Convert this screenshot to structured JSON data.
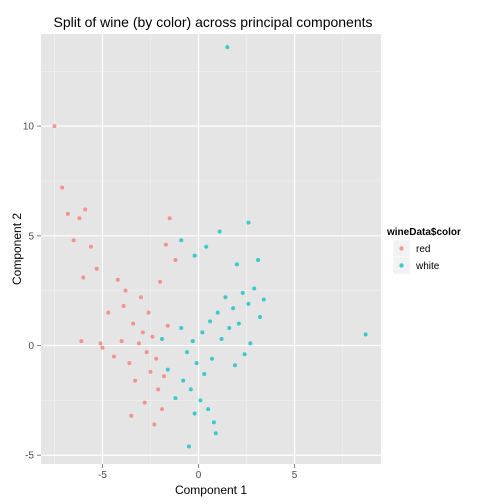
{
  "chart_data": {
    "type": "scatter",
    "title": "Split of wine (by color) across principal components",
    "xlabel": "Component 1",
    "ylabel": "Component 2",
    "xlim": [
      -8.2,
      9.5
    ],
    "ylim": [
      -5.4,
      14.2
    ],
    "x_ticks": [
      -5,
      0,
      5
    ],
    "y_ticks": [
      -5,
      0,
      5,
      10
    ],
    "grid": true,
    "legend": {
      "title": "wineData$color",
      "position": "right",
      "entries": [
        "red",
        "white"
      ]
    },
    "series": [
      {
        "name": "red",
        "color": "#F8766D",
        "points": [
          [
            -7.5,
            10.0
          ],
          [
            -7.1,
            7.2
          ],
          [
            -6.8,
            6.0
          ],
          [
            -6.2,
            5.8
          ],
          [
            -5.9,
            6.2
          ],
          [
            -6.5,
            4.8
          ],
          [
            -5.6,
            4.5
          ],
          [
            -6.0,
            3.1
          ],
          [
            -5.3,
            3.5
          ],
          [
            -6.1,
            0.2
          ],
          [
            -5.1,
            0.1
          ],
          [
            -4.7,
            1.5
          ],
          [
            -5.0,
            -0.1
          ],
          [
            -1.5,
            5.8
          ],
          [
            -1.7,
            4.6
          ],
          [
            -1.2,
            3.9
          ],
          [
            -2.0,
            2.9
          ],
          [
            -4.2,
            3.0
          ],
          [
            -3.8,
            2.5
          ],
          [
            -3.0,
            2.2
          ],
          [
            -2.6,
            1.5
          ],
          [
            -3.4,
            1.0
          ],
          [
            -2.9,
            0.6
          ],
          [
            -2.4,
            0.4
          ],
          [
            -3.1,
            0.1
          ],
          [
            -2.7,
            -0.3
          ],
          [
            -2.2,
            -0.6
          ],
          [
            -3.6,
            -0.8
          ],
          [
            -2.5,
            -1.2
          ],
          [
            -3.3,
            -1.6
          ],
          [
            -2.1,
            -2.0
          ],
          [
            -2.8,
            -2.6
          ],
          [
            -3.5,
            -3.2
          ],
          [
            -1.9,
            -2.9
          ],
          [
            -2.3,
            -3.6
          ],
          [
            -1.8,
            -1.4
          ],
          [
            -1.6,
            0.9
          ],
          [
            -4.0,
            0.2
          ],
          [
            -4.4,
            -0.5
          ],
          [
            -3.9,
            1.8
          ]
        ]
      },
      {
        "name": "white",
        "color": "#00BFC4",
        "points": [
          [
            1.5,
            13.6
          ],
          [
            2.6,
            5.6
          ],
          [
            8.7,
            0.5
          ],
          [
            1.1,
            5.2
          ],
          [
            0.4,
            4.5
          ],
          [
            -0.9,
            4.8
          ],
          [
            -0.2,
            4.1
          ],
          [
            2.0,
            3.7
          ],
          [
            3.1,
            3.9
          ],
          [
            2.9,
            2.6
          ],
          [
            2.6,
            1.9
          ],
          [
            2.3,
            2.4
          ],
          [
            1.8,
            1.7
          ],
          [
            1.4,
            2.2
          ],
          [
            1.0,
            1.5
          ],
          [
            0.6,
            1.1
          ],
          [
            0.2,
            0.6
          ],
          [
            -0.3,
            0.2
          ],
          [
            -0.6,
            -0.3
          ],
          [
            -0.1,
            -0.8
          ],
          [
            0.3,
            -1.3
          ],
          [
            0.7,
            -0.6
          ],
          [
            1.2,
            0.3
          ],
          [
            1.6,
            0.8
          ],
          [
            2.1,
            1.0
          ],
          [
            -0.8,
            -1.6
          ],
          [
            -0.4,
            -2.0
          ],
          [
            0.1,
            -2.5
          ],
          [
            0.5,
            -2.9
          ],
          [
            -0.2,
            -3.1
          ],
          [
            0.8,
            -3.5
          ],
          [
            -1.2,
            -2.4
          ],
          [
            -1.6,
            -1.1
          ],
          [
            -0.9,
            0.8
          ],
          [
            2.7,
            0.1
          ],
          [
            3.2,
            1.3
          ],
          [
            -0.5,
            -4.6
          ],
          [
            0.9,
            -4.0
          ],
          [
            1.9,
            -0.9
          ],
          [
            -1.9,
            0.3
          ],
          [
            2.4,
            -0.4
          ],
          [
            3.4,
            2.1
          ]
        ]
      }
    ]
  }
}
